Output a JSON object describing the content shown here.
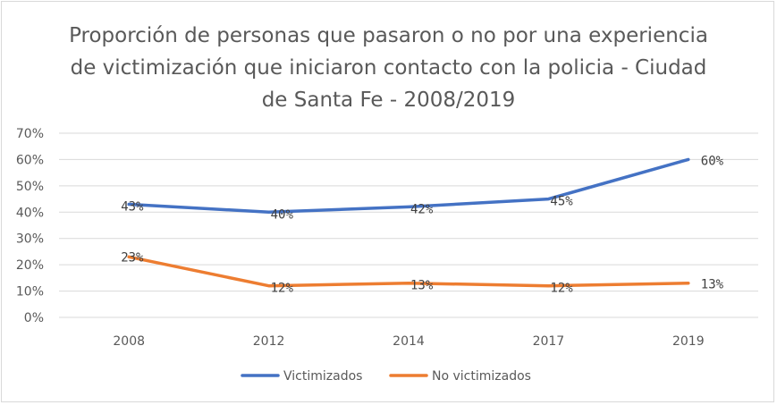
{
  "chart_data": {
    "type": "line",
    "title": "Proporción de personas que pasaron o no por una experiencia de victimización que iniciaron contacto con la policia - Ciudad de Santa Fe - 2008/2019",
    "categories": [
      "2008",
      "2012",
      "2014",
      "2017",
      "2019"
    ],
    "series": [
      {
        "name": "Victimizados",
        "values": [
          43,
          40,
          42,
          45,
          60
        ],
        "labels": [
          "43%",
          "40%",
          "42%",
          "45%",
          "60%"
        ],
        "color": "#4472c4"
      },
      {
        "name": "No victimizados",
        "values": [
          23,
          12,
          13,
          12,
          13
        ],
        "labels": [
          "23%",
          "12%",
          "13%",
          "12%",
          "13%"
        ],
        "color": "#ed7d31"
      }
    ],
    "y_ticks": [
      "0%",
      "10%",
      "20%",
      "30%",
      "40%",
      "50%",
      "60%",
      "70%"
    ],
    "ylim": [
      0,
      70
    ],
    "grid": true,
    "gridline_color": "#d9d9d9",
    "legend_position": "bottom"
  }
}
